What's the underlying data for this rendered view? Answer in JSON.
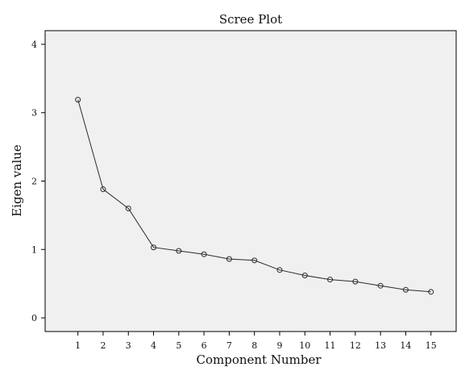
{
  "chart_data": {
    "type": "line",
    "title": "Scree Plot",
    "xlabel": "Component Number",
    "ylabel": "Eigen value",
    "x": [
      1,
      2,
      3,
      4,
      5,
      6,
      7,
      8,
      9,
      10,
      11,
      12,
      13,
      14,
      15
    ],
    "values": [
      3.19,
      1.88,
      1.6,
      1.03,
      0.98,
      0.93,
      0.86,
      0.84,
      0.7,
      0.62,
      0.56,
      0.53,
      0.47,
      0.41,
      0.38
    ],
    "xlim": [
      -0.3,
      16
    ],
    "ylim": [
      -0.2,
      4.2
    ],
    "x_ticks": [
      1,
      2,
      3,
      4,
      5,
      6,
      7,
      8,
      9,
      10,
      11,
      12,
      13,
      14,
      15
    ],
    "y_ticks": [
      0,
      1,
      2,
      3,
      4
    ],
    "grid": false,
    "legend": "none",
    "markers": "open-circle",
    "colors": {
      "plot_background": "#f0f0f0",
      "line": "#2b2b2b",
      "axis": "#000000"
    }
  }
}
